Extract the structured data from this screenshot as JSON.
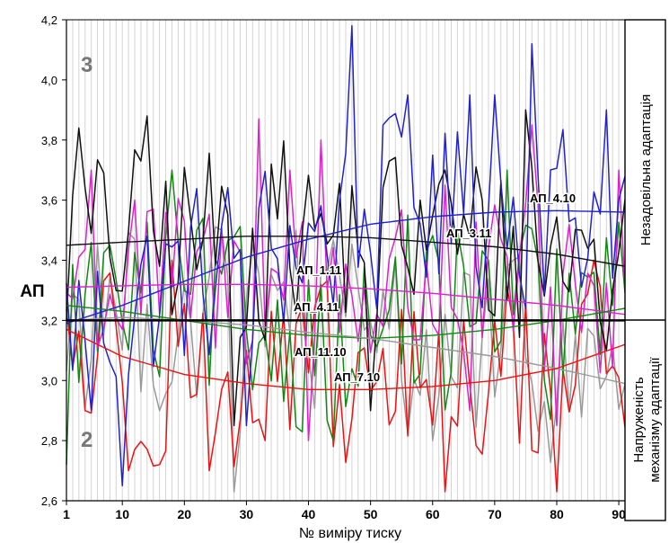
{
  "chart_data": {
    "type": "line",
    "xlabel": "№ виміру тиску",
    "ylabel": "АП",
    "xlim": [
      1,
      91
    ],
    "ylim": [
      2.6,
      4.2
    ],
    "x_ticks": [
      1,
      10,
      20,
      30,
      40,
      50,
      60,
      70,
      80,
      90
    ],
    "y_ticks": [
      "2,6",
      "2,8",
      "3,0",
      "3,2",
      "3,4",
      "3,6",
      "3,8",
      "4,0",
      "4,2"
    ],
    "grid": "vertical",
    "threshold": 3.2,
    "zone_labels": {
      "upper_number": "3",
      "lower_number": "2",
      "upper_text": "Незадовільна адаптація",
      "lower_text_line1": "Напруженість",
      "lower_text_line2": "механізму адаптації"
    },
    "series": [
      {
        "name": "АП_4.10",
        "color": "#2222cc",
        "trend": [
          [
            1,
            3.19
          ],
          [
            10,
            3.25
          ],
          [
            20,
            3.33
          ],
          [
            30,
            3.41
          ],
          [
            40,
            3.47
          ],
          [
            50,
            3.52
          ],
          [
            60,
            3.545
          ],
          [
            70,
            3.56
          ],
          [
            80,
            3.565
          ],
          [
            91,
            3.56
          ]
        ],
        "noise_points": [
          [
            47,
            4.18
          ],
          [
            52,
            3.85
          ],
          [
            56,
            3.95
          ],
          [
            60,
            3.75
          ],
          [
            66,
            3.95
          ],
          [
            70,
            3.95
          ],
          [
            76,
            4.12
          ],
          [
            10,
            2.65
          ],
          [
            5,
            2.9
          ],
          [
            30,
            2.85
          ],
          [
            45,
            3.6
          ],
          [
            88,
            3.9
          ]
        ]
      },
      {
        "name": "АП_3.11",
        "color": "#111111",
        "trend": [
          [
            1,
            3.45
          ],
          [
            10,
            3.46
          ],
          [
            20,
            3.47
          ],
          [
            30,
            3.48
          ],
          [
            40,
            3.48
          ],
          [
            50,
            3.475
          ],
          [
            60,
            3.46
          ],
          [
            70,
            3.445
          ],
          [
            80,
            3.42
          ],
          [
            91,
            3.38
          ]
        ],
        "noise_points": [
          [
            3,
            3.84
          ],
          [
            14,
            3.88
          ],
          [
            34,
            3.72
          ],
          [
            58,
            3.6
          ],
          [
            62,
            3.7
          ],
          [
            75,
            3.9
          ],
          [
            84,
            3.5
          ],
          [
            28,
            2.85
          ],
          [
            50,
            2.9
          ],
          [
            88,
            3.1
          ]
        ]
      },
      {
        "name": "АП_1.11",
        "color": "#dd22cc",
        "trend": [
          [
            1,
            3.31
          ],
          [
            10,
            3.315
          ],
          [
            20,
            3.32
          ],
          [
            30,
            3.32
          ],
          [
            40,
            3.315
          ],
          [
            50,
            3.305
          ],
          [
            60,
            3.29
          ],
          [
            70,
            3.27
          ],
          [
            80,
            3.25
          ],
          [
            91,
            3.22
          ]
        ],
        "noise_points": [
          [
            5,
            3.7
          ],
          [
            12,
            3.6
          ],
          [
            32,
            3.87
          ],
          [
            37,
            3.7
          ],
          [
            42,
            3.8
          ],
          [
            62,
            3.65
          ],
          [
            76,
            3.85
          ],
          [
            90,
            3.7
          ],
          [
            40,
            2.8
          ],
          [
            66,
            2.9
          ],
          [
            80,
            2.85
          ]
        ]
      },
      {
        "name": "АП_4.11",
        "color": "#118811",
        "trend": [
          [
            1,
            3.25
          ],
          [
            10,
            3.23
          ],
          [
            20,
            3.2
          ],
          [
            30,
            3.17
          ],
          [
            40,
            3.15
          ],
          [
            50,
            3.14
          ],
          [
            60,
            3.15
          ],
          [
            70,
            3.17
          ],
          [
            80,
            3.2
          ],
          [
            91,
            3.24
          ]
        ],
        "noise_points": [
          [
            8,
            3.45
          ],
          [
            18,
            3.7
          ],
          [
            22,
            3.5
          ],
          [
            56,
            3.55
          ],
          [
            64,
            3.5
          ],
          [
            72,
            3.7
          ],
          [
            1,
            2.72
          ],
          [
            44,
            2.8
          ],
          [
            78,
            3.0
          ]
        ]
      },
      {
        "name": "АП_11.10",
        "color": "#999999",
        "trend": [
          [
            1,
            3.2
          ],
          [
            10,
            3.21
          ],
          [
            20,
            3.2
          ],
          [
            30,
            3.185
          ],
          [
            40,
            3.16
          ],
          [
            50,
            3.14
          ],
          [
            60,
            3.11
          ],
          [
            70,
            3.08
          ],
          [
            80,
            3.04
          ],
          [
            91,
            2.99
          ]
        ],
        "noise_points": [
          [
            6,
            3.45
          ],
          [
            26,
            3.5
          ],
          [
            28,
            2.63
          ],
          [
            38,
            3.5
          ],
          [
            52,
            3.3
          ],
          [
            60,
            2.8
          ],
          [
            82,
            2.9
          ]
        ]
      },
      {
        "name": "АП_7.10",
        "color": "#ee1111",
        "trend": [
          [
            1,
            3.17
          ],
          [
            10,
            3.08
          ],
          [
            20,
            3.02
          ],
          [
            30,
            2.99
          ],
          [
            40,
            2.97
          ],
          [
            50,
            2.97
          ],
          [
            60,
            2.98
          ],
          [
            70,
            3.0
          ],
          [
            80,
            3.04
          ],
          [
            91,
            3.12
          ]
        ],
        "noise_points": [
          [
            4,
            2.9
          ],
          [
            11,
            2.7
          ],
          [
            18,
            3.4
          ],
          [
            24,
            2.7
          ],
          [
            33,
            2.8
          ],
          [
            44,
            2.78
          ],
          [
            62,
            2.63
          ],
          [
            70,
            3.2
          ],
          [
            80,
            2.63
          ],
          [
            86,
            3.4
          ]
        ]
      }
    ]
  }
}
